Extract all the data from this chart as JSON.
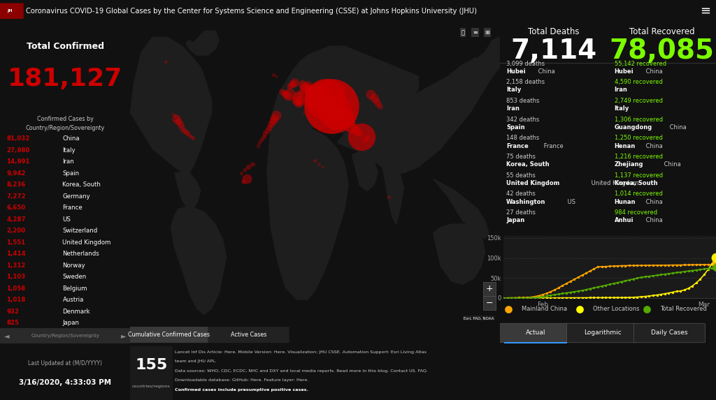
{
  "title": "Coronavirus COVID-19 Global Cases by the Center for Systems Science and Engineering (CSSE) at Johns Hopkins University (JHU)",
  "bg_color": "#111111",
  "header_bg": "#1a1a1a",
  "left_top_bg": "#1a1a1a",
  "left_list_bg": "#0f0f0f",
  "panel_dark": "#1c1c1c",
  "map_bg": "#1a2c3a",
  "map_land": "#2a2a2a",
  "total_confirmed": "181,127",
  "total_deaths": "7,114",
  "total_recovered": "78,085",
  "confirmed_label": "Total Confirmed",
  "deaths_label": "Total Deaths",
  "recovered_label": "Total Recovered",
  "confirmed_color": "#cc0000",
  "deaths_color": "#ffffff",
  "recovered_color": "#7cfc00",
  "subtitle_confirmed": "Confirmed Cases by\nCountry/Region/Sovereignty",
  "confirmed_list": [
    [
      "81,032",
      "China"
    ],
    [
      "27,980",
      "Italy"
    ],
    [
      "14,991",
      "Iran"
    ],
    [
      "9,942",
      "Spain"
    ],
    [
      "8,236",
      "Korea, South"
    ],
    [
      "7,272",
      "Germany"
    ],
    [
      "6,650",
      "France"
    ],
    [
      "4,287",
      "US"
    ],
    [
      "2,200",
      "Switzerland"
    ],
    [
      "1,551",
      "United Kingdom"
    ],
    [
      "1,414",
      "Netherlands"
    ],
    [
      "1,312",
      "Norway"
    ],
    [
      "1,103",
      "Sweden"
    ],
    [
      "1,058",
      "Belgium"
    ],
    [
      "1,018",
      "Austria"
    ],
    [
      "932",
      "Denmark"
    ],
    [
      "825",
      "Japan"
    ]
  ],
  "deaths_list": [
    [
      "3,099 deaths",
      "Hubei",
      " China"
    ],
    [
      "2,158 deaths",
      "Italy",
      ""
    ],
    [
      "853 deaths",
      "Iran",
      ""
    ],
    [
      "342 deaths",
      "Spain",
      ""
    ],
    [
      "148 deaths",
      "France",
      " France"
    ],
    [
      "75 deaths",
      "Korea, South",
      ""
    ],
    [
      "55 deaths",
      "United Kingdom",
      " United Kingdom"
    ],
    [
      "42 deaths",
      "Washington",
      " US"
    ],
    [
      "27 deaths",
      "Japan",
      ""
    ]
  ],
  "recovered_list": [
    [
      "55,142 recovered",
      "Hubei",
      " China"
    ],
    [
      "4,590 recovered",
      "Iran",
      ""
    ],
    [
      "2,749 recovered",
      "Italy",
      ""
    ],
    [
      "1,306 recovered",
      "Guangdong",
      " China"
    ],
    [
      "1,250 recovered",
      "Henan",
      " China"
    ],
    [
      "1,216 recovered",
      "Zhejiang",
      " China"
    ],
    [
      "1,137 recovered",
      "Korea, South",
      ""
    ],
    [
      "1,014 recovered",
      "Hunan",
      " China"
    ],
    [
      "984 recovered",
      "Anhui",
      " China"
    ]
  ],
  "last_updated_line1": "Last Updated at (M/D/YYYY)",
  "last_updated_line2": "3/16/2020, 4:33:03 PM",
  "countries_num": "155",
  "countries_label": "countries/regions",
  "footer_lines": [
    "Lancet Inf Dis Article: Here. Mobile Version: Here. Visualization: JHU CSSE. Automation Support: Esri Living Atlas",
    "team and JHU APL.",
    "Data sources: WHO, CDC, ECDC, NHC and DXY and local media reports. Read more in this blog. Contact US. FAQ.",
    "Downloadable database: GitHub: Here. Feature layer: Here.",
    "Confirmed cases include presumptive positive cases."
  ],
  "chart_yticks": [
    0,
    50000,
    100000,
    150000
  ],
  "chart_ytick_labels": [
    "0",
    "50k",
    "100k",
    "150k"
  ],
  "legend_items": [
    "Mainland China",
    "Other Locations",
    "Total Recovered"
  ],
  "legend_colors": [
    "#FFA500",
    "#FFFF00",
    "#55aa00"
  ],
  "tab_labels_map": [
    "Cumulative Confirmed Cases",
    "Active Cases"
  ],
  "tab_labels_chart": [
    "Actual",
    "Logarithmic",
    "Daily Cases"
  ],
  "map_circles": [
    [
      0.545,
      0.72,
      3200,
      0.85
    ],
    [
      0.555,
      0.7,
      1200,
      0.7
    ],
    [
      0.56,
      0.68,
      600,
      0.6
    ],
    [
      0.53,
      0.745,
      1800,
      0.8
    ],
    [
      0.51,
      0.75,
      900,
      0.7
    ],
    [
      0.5,
      0.755,
      500,
      0.65
    ],
    [
      0.495,
      0.76,
      300,
      0.6
    ],
    [
      0.49,
      0.77,
      200,
      0.55
    ],
    [
      0.485,
      0.775,
      150,
      0.5
    ],
    [
      0.475,
      0.78,
      120,
      0.5
    ],
    [
      0.47,
      0.785,
      100,
      0.5
    ],
    [
      0.48,
      0.79,
      80,
      0.5
    ],
    [
      0.465,
      0.795,
      70,
      0.45
    ],
    [
      0.465,
      0.77,
      60,
      0.45
    ],
    [
      0.458,
      0.76,
      50,
      0.45
    ],
    [
      0.445,
      0.8,
      80,
      0.5
    ],
    [
      0.44,
      0.795,
      60,
      0.45
    ],
    [
      0.435,
      0.79,
      50,
      0.4
    ],
    [
      0.43,
      0.785,
      40,
      0.4
    ],
    [
      0.455,
      0.75,
      180,
      0.55
    ],
    [
      0.46,
      0.74,
      120,
      0.5
    ],
    [
      0.45,
      0.74,
      100,
      0.5
    ],
    [
      0.455,
      0.73,
      80,
      0.45
    ],
    [
      0.43,
      0.76,
      150,
      0.5
    ],
    [
      0.425,
      0.755,
      80,
      0.45
    ],
    [
      0.42,
      0.76,
      60,
      0.4
    ],
    [
      0.415,
      0.765,
      50,
      0.4
    ],
    [
      0.41,
      0.77,
      40,
      0.4
    ],
    [
      0.58,
      0.68,
      400,
      0.6
    ],
    [
      0.59,
      0.66,
      200,
      0.5
    ],
    [
      0.6,
      0.65,
      150,
      0.5
    ],
    [
      0.595,
      0.67,
      100,
      0.45
    ],
    [
      0.61,
      0.64,
      80,
      0.45
    ],
    [
      0.615,
      0.635,
      60,
      0.4
    ],
    [
      0.62,
      0.63,
      50,
      0.4
    ],
    [
      0.625,
      0.62,
      800,
      0.7
    ],
    [
      0.635,
      0.61,
      40,
      0.4
    ],
    [
      0.64,
      0.62,
      30,
      0.4
    ],
    [
      0.65,
      0.76,
      100,
      0.5
    ],
    [
      0.66,
      0.75,
      80,
      0.45
    ],
    [
      0.665,
      0.74,
      60,
      0.4
    ],
    [
      0.67,
      0.73,
      50,
      0.4
    ],
    [
      0.675,
      0.72,
      40,
      0.4
    ],
    [
      0.395,
      0.69,
      100,
      0.5
    ],
    [
      0.39,
      0.68,
      80,
      0.5
    ],
    [
      0.385,
      0.67,
      60,
      0.5
    ],
    [
      0.38,
      0.66,
      50,
      0.45
    ],
    [
      0.375,
      0.65,
      40,
      0.45
    ],
    [
      0.37,
      0.64,
      35,
      0.4
    ],
    [
      0.365,
      0.63,
      30,
      0.4
    ],
    [
      0.36,
      0.62,
      25,
      0.4
    ],
    [
      0.355,
      0.61,
      20,
      0.35
    ],
    [
      0.35,
      0.6,
      18,
      0.35
    ],
    [
      0.345,
      0.59,
      15,
      0.35
    ],
    [
      0.125,
      0.68,
      80,
      0.5
    ],
    [
      0.13,
      0.67,
      60,
      0.45
    ],
    [
      0.135,
      0.66,
      50,
      0.45
    ],
    [
      0.14,
      0.65,
      40,
      0.4
    ],
    [
      0.145,
      0.64,
      35,
      0.4
    ],
    [
      0.15,
      0.635,
      30,
      0.4
    ],
    [
      0.155,
      0.63,
      25,
      0.4
    ],
    [
      0.16,
      0.625,
      20,
      0.35
    ],
    [
      0.165,
      0.62,
      18,
      0.35
    ],
    [
      0.17,
      0.615,
      15,
      0.35
    ],
    [
      0.12,
      0.69,
      12,
      0.35
    ],
    [
      0.115,
      0.695,
      10,
      0.3
    ],
    [
      0.32,
      0.52,
      30,
      0.4
    ],
    [
      0.33,
      0.53,
      25,
      0.4
    ],
    [
      0.31,
      0.51,
      20,
      0.35
    ],
    [
      0.3,
      0.5,
      15,
      0.35
    ],
    [
      0.315,
      0.48,
      100,
      0.5
    ],
    [
      0.305,
      0.47,
      25,
      0.4
    ],
    [
      0.498,
      0.54,
      15,
      0.35
    ],
    [
      0.51,
      0.53,
      12,
      0.3
    ],
    [
      0.52,
      0.52,
      10,
      0.3
    ],
    [
      0.49,
      0.68,
      12,
      0.35
    ],
    [
      0.48,
      0.69,
      10,
      0.3
    ],
    [
      0.47,
      0.7,
      10,
      0.3
    ],
    [
      0.565,
      0.76,
      50,
      0.45
    ],
    [
      0.57,
      0.77,
      40,
      0.4
    ],
    [
      0.575,
      0.78,
      30,
      0.4
    ],
    [
      0.388,
      0.825,
      12,
      0.35
    ],
    [
      0.395,
      0.82,
      10,
      0.3
    ],
    [
      0.7,
      0.42,
      15,
      0.35
    ],
    [
      0.095,
      0.87,
      12,
      0.35
    ]
  ]
}
